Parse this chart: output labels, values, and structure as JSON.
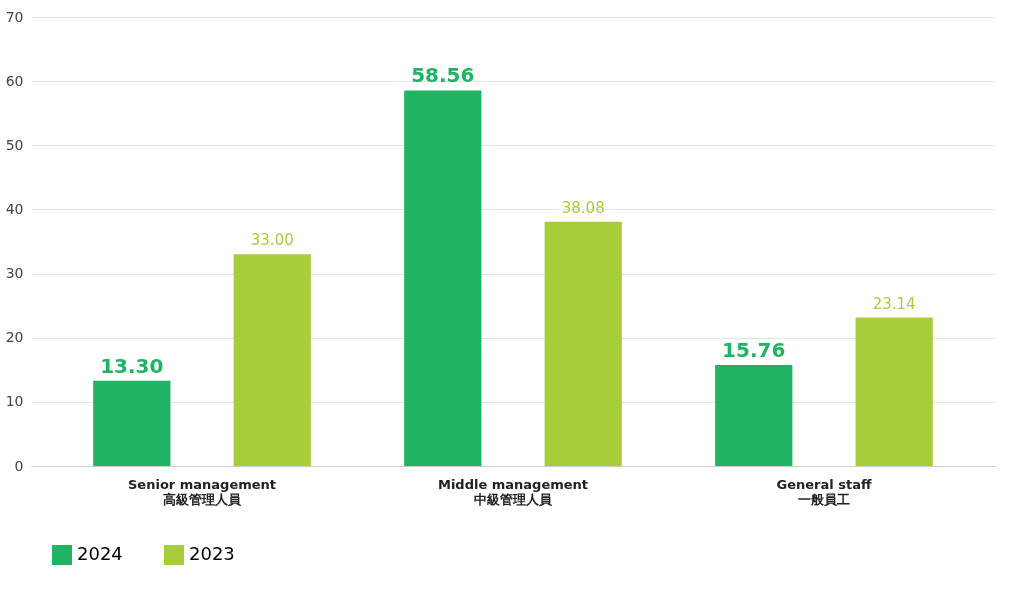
{
  "chart_data": {
    "type": "bar",
    "categories": [
      "Senior management\n高級管理人員",
      "Middle management\n中級管理人員",
      "General staff\n一般員工"
    ],
    "series": [
      {
        "name": "2024",
        "color": "#20b363",
        "values": [
          13.3,
          58.56,
          15.76
        ],
        "value_labels": [
          "13.30",
          "58.56",
          "15.76"
        ]
      },
      {
        "name": "2023",
        "color": "#a8cd3a",
        "values": [
          33.0,
          38.08,
          23.14
        ],
        "value_labels": [
          "33.00",
          "38.08",
          "23.14"
        ]
      }
    ],
    "ylim": [
      0,
      70
    ],
    "yticks": [
      0,
      10,
      20,
      30,
      40,
      50,
      60,
      70
    ],
    "grid": "y",
    "legend": "bottom"
  }
}
